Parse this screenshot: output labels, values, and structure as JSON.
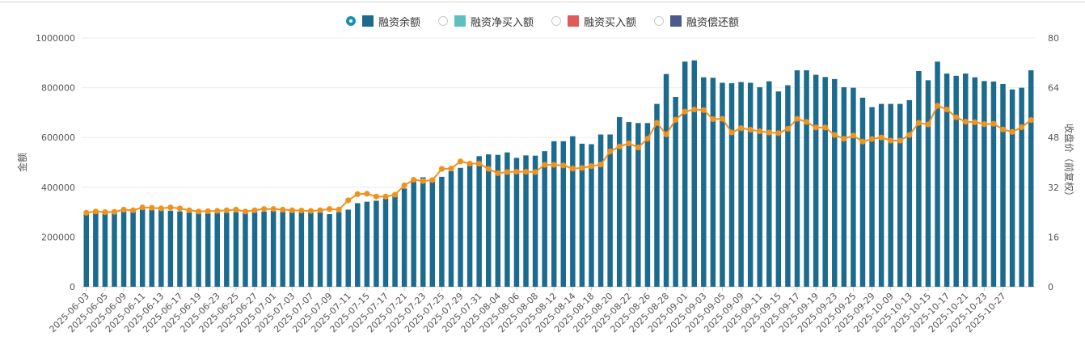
{
  "legend": {
    "items": [
      {
        "label": "融资余额",
        "color": "#1c6b8f",
        "checked": true
      },
      {
        "label": "融资净买入额",
        "color": "#5fbfbf",
        "checked": false
      },
      {
        "label": "融资买入额",
        "color": "#e05a5a",
        "checked": false
      },
      {
        "label": "融资偿还额",
        "color": "#4a5a8c",
        "checked": false
      }
    ]
  },
  "chart_data": {
    "type": "bar+line",
    "xlabel": "",
    "ylabel_left": "金额",
    "ylabel_right": "收盘价（前复权）",
    "ylim_left": [
      0,
      1000000
    ],
    "ylim_right": [
      0,
      80
    ],
    "yticks_left": [
      "0",
      "200000",
      "400000",
      "600000",
      "800000",
      "1000000"
    ],
    "yticks_right": [
      "0",
      "16",
      "32",
      "48",
      "64",
      "80"
    ],
    "bar_color": "#1c6b8f",
    "line_color": "#f0921e",
    "x_tick_labels": [
      "2025-06-03",
      "2025-06-05",
      "2025-06-09",
      "2025-06-11",
      "2025-06-13",
      "2025-06-17",
      "2025-06-19",
      "2025-06-23",
      "2025-06-25",
      "2025-06-27",
      "2025-07-01",
      "2025-07-03",
      "2025-07-07",
      "2025-07-09",
      "2025-07-11",
      "2025-07-15",
      "2025-07-17",
      "2025-07-21",
      "2025-07-23",
      "2025-07-25",
      "2025-07-29",
      "2025-07-31",
      "2025-08-04",
      "2025-08-06",
      "2025-08-08",
      "2025-08-12",
      "2025-08-14",
      "2025-08-18",
      "2025-08-20",
      "2025-08-22",
      "2025-08-26",
      "2025-08-28",
      "2025-09-01",
      "2025-09-03",
      "2025-09-05",
      "2025-09-09",
      "2025-09-11",
      "2025-09-15",
      "2025-09-17",
      "2025-09-19",
      "2025-09-23",
      "2025-09-25",
      "2025-09-29",
      "2025-10-09",
      "2025-10-13",
      "2025-10-15",
      "2025-10-17",
      "2025-10-21",
      "2025-10-23",
      "2025-10-27"
    ],
    "series": [
      {
        "name": "融资余额",
        "axis": "left",
        "kind": "bar",
        "values": [
          295000,
          300000,
          298000,
          300000,
          305000,
          310000,
          315000,
          310000,
          308000,
          306000,
          303000,
          300000,
          296000,
          295000,
          297000,
          298000,
          300000,
          297000,
          300000,
          302000,
          305000,
          303000,
          301000,
          300000,
          299000,
          300000,
          292000,
          300000,
          310000,
          336000,
          342000,
          346000,
          354000,
          370000,
          395000,
          425000,
          440000,
          432000,
          442000,
          465000,
          478000,
          500000,
          525000,
          532000,
          530000,
          540000,
          518000,
          528000,
          527000,
          545000,
          585000,
          585000,
          605000,
          575000,
          573000,
          612000,
          612000,
          682000,
          662000,
          658000,
          658000,
          735000,
          855000,
          763000,
          905000,
          910000,
          842000,
          840000,
          820000,
          818000,
          823000,
          820000,
          802000,
          826000,
          785000,
          810000,
          870000,
          870000,
          852000,
          843000,
          835000,
          802000,
          800000,
          760000,
          722000,
          735000,
          735000,
          735000,
          750000,
          867000,
          830000,
          905000,
          857000,
          848000,
          857000,
          842000,
          827000,
          825000,
          815000,
          793000,
          800000,
          870000
        ]
      },
      {
        "name": "收盘价（前复权）",
        "axis": "right",
        "kind": "line",
        "values": [
          23.8,
          24.2,
          24.0,
          24.1,
          24.8,
          24.6,
          25.5,
          25.4,
          25.2,
          25.5,
          25.2,
          24.6,
          24.2,
          24.3,
          24.4,
          24.6,
          24.8,
          24.2,
          24.6,
          25.0,
          25.0,
          24.8,
          24.6,
          24.5,
          24.4,
          24.6,
          25.0,
          24.8,
          27.8,
          29.8,
          29.9,
          29.0,
          29.0,
          29.6,
          32.6,
          34.4,
          34.0,
          34.3,
          37.9,
          38.0,
          40.3,
          39.6,
          39.6,
          37.9,
          36.5,
          36.9,
          37.0,
          37.0,
          36.9,
          39.2,
          39.2,
          39.0,
          38.0,
          38.2,
          38.8,
          39.3,
          43.5,
          45.1,
          46.1,
          44.8,
          47.6,
          52.7,
          49.0,
          53.7,
          56.3,
          57.0,
          56.8,
          53.9,
          54.0,
          49.6,
          51.0,
          50.5,
          50.0,
          49.6,
          49.4,
          50.8,
          54.0,
          53.0,
          51.2,
          51.2,
          48.8,
          47.6,
          48.6,
          46.7,
          47.5,
          48.0,
          47.0,
          47.0,
          48.8,
          52.7,
          52.2,
          58.2,
          57.0,
          54.5,
          53.1,
          52.9,
          52.3,
          52.4,
          50.6,
          49.8,
          51.3,
          53.6
        ]
      }
    ]
  }
}
